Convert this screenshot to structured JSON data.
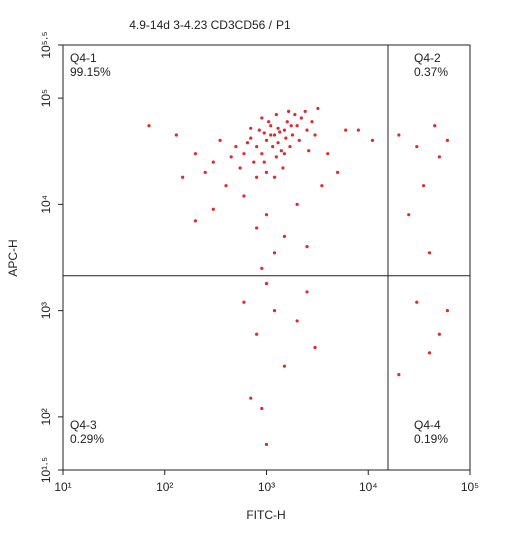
{
  "chart_data": {
    "type": "scatter",
    "title": "4.9-14d 3-4.23 CD3CD56 /",
    "gate": "P1",
    "gate_color": "#e8262a",
    "x_label": "FITC-H",
    "y_label": "APC-H",
    "xscale": "log",
    "yscale": "log",
    "xlim": [
      10,
      100000
    ],
    "ylim": [
      31.6228,
      316228
    ],
    "xticks": [
      {
        "value": 10,
        "label": "10¹"
      },
      {
        "value": 100,
        "label": "10²"
      },
      {
        "value": 1000,
        "label": "10³"
      },
      {
        "value": 10000,
        "label": "10⁴"
      },
      {
        "value": 100000,
        "label": "10⁵"
      }
    ],
    "yticks": [
      {
        "value": 31.6228,
        "label": "10¹·⁵"
      },
      {
        "value": 100,
        "label": "10²"
      },
      {
        "value": 1000,
        "label": "10³"
      },
      {
        "value": 10000,
        "label": "10⁴"
      },
      {
        "value": 100000,
        "label": "10⁵"
      },
      {
        "value": 316228,
        "label": "10⁵·⁵"
      }
    ],
    "color": "#e8262a",
    "x": [
      1000,
      1200,
      1500,
      800,
      900,
      1100,
      1300,
      1600,
      700,
      1400,
      2000,
      1800,
      600,
      950,
      1250,
      1700,
      2200,
      2500,
      1050,
      850,
      750,
      650,
      1150,
      1350,
      1550,
      1900,
      2400,
      2800,
      3000,
      550,
      500,
      450,
      1000,
      1200,
      1450,
      800,
      2100,
      2600,
      1650,
      1250,
      900,
      3200,
      1750,
      1100,
      1300,
      950,
      1500,
      700,
      400,
      350,
      300,
      250,
      200,
      150,
      130,
      70,
      4000,
      5000,
      6000,
      3500,
      2000,
      1000,
      800,
      1500,
      600,
      300,
      200,
      1200,
      900,
      2500,
      11000,
      8000,
      20000,
      30000,
      45000,
      50000,
      25000,
      35000,
      60000,
      40000,
      1000,
      1200,
      800,
      1500,
      2000,
      700,
      1000,
      3000,
      600,
      2500,
      20000,
      40000,
      50000,
      30000,
      60000,
      900
    ],
    "values": [
      40000,
      45000,
      50000,
      35000,
      30000,
      55000,
      38000,
      60000,
      42000,
      32000,
      55000,
      45000,
      30000,
      25000,
      28000,
      35000,
      65000,
      50000,
      60000,
      50000,
      25000,
      38000,
      35000,
      48000,
      42000,
      70000,
      75000,
      60000,
      45000,
      22000,
      35000,
      28000,
      20000,
      18000,
      22000,
      18000,
      40000,
      32000,
      75000,
      70000,
      65000,
      80000,
      55000,
      45000,
      52000,
      47000,
      30000,
      52000,
      15000,
      40000,
      25000,
      20000,
      30000,
      18000,
      45000,
      55000,
      30000,
      20000,
      50000,
      15000,
      10000,
      8000,
      6000,
      5000,
      12000,
      9000,
      7000,
      3500,
      2500,
      4000,
      40000,
      50000,
      45000,
      35000,
      55000,
      28000,
      8000,
      15000,
      40000,
      3500,
      1800,
      1000,
      600,
      300,
      800,
      150,
      55,
      450,
      1200,
      1500,
      250,
      400,
      600,
      1200,
      1000,
      120
    ],
    "gate_x": 15630,
    "gate_y": 2130,
    "quadrants": {
      "names": [
        "Q4-1",
        "Q4-2",
        "Q4-3",
        "Q4-4"
      ],
      "values": [
        99.15,
        0.37,
        0.29,
        0.19
      ],
      "value_labels": [
        "99.15%",
        "0.37%",
        "0.29%",
        "0.19%"
      ]
    }
  }
}
